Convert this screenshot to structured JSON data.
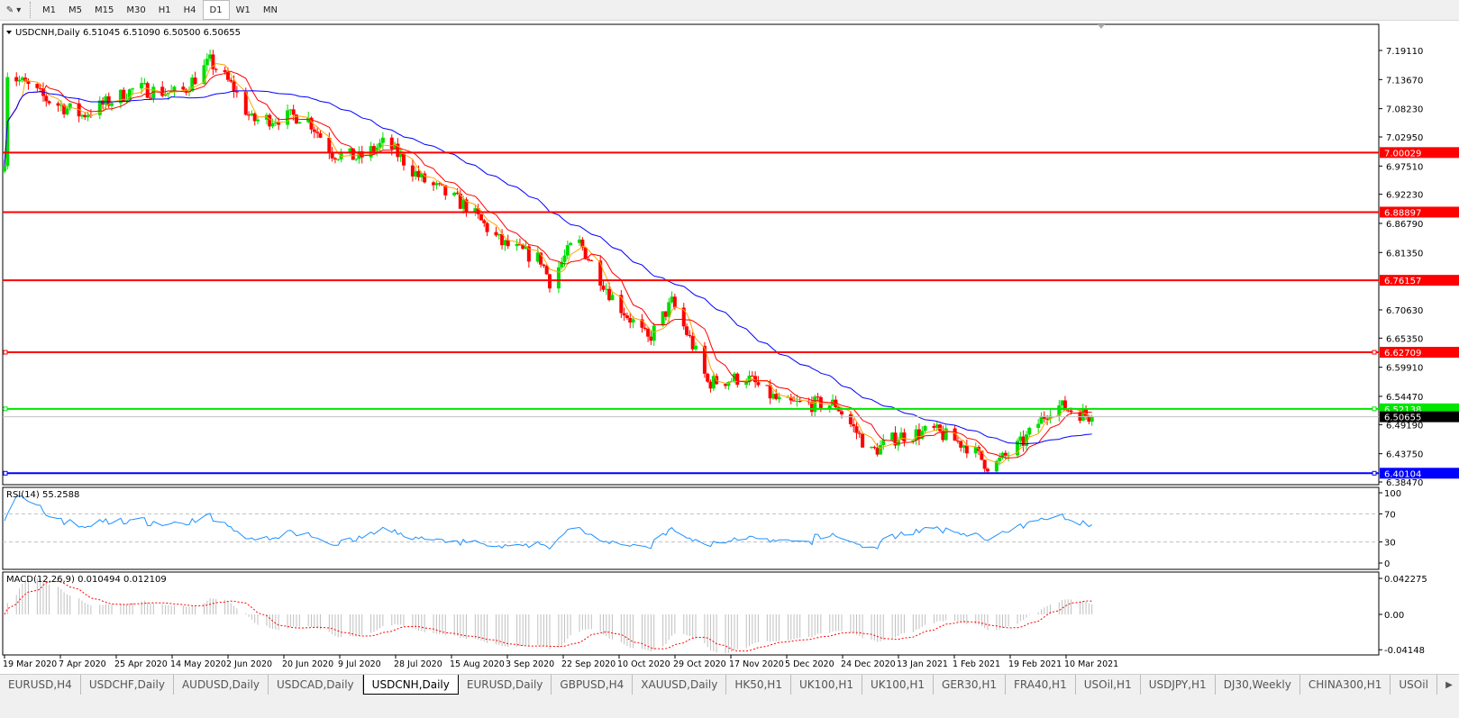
{
  "toolbar": {
    "tool_icon": "crosshair-line-tool-icon",
    "timeframes": [
      "M1",
      "M5",
      "M15",
      "M30",
      "H1",
      "H4",
      "D1",
      "W1",
      "MN"
    ],
    "active": "D1"
  },
  "chart": {
    "header": "USDCNH,Daily  6.51045 6.51090 6.50500 6.50655",
    "symbol": "USDCNH",
    "period": "Daily",
    "open": 6.51045,
    "high": 6.5109,
    "low": 6.505,
    "close": 6.50655,
    "price_ticks": [
      "7.19110",
      "7.13670",
      "7.08230",
      "7.02950",
      "6.97510",
      "6.92230",
      "6.86790",
      "6.81350",
      "6.70630",
      "6.65350",
      "6.59910",
      "6.54470",
      "6.49190",
      "6.43750",
      "6.38470"
    ],
    "levels": [
      {
        "price": "7.00029",
        "color": "#ff0000"
      },
      {
        "price": "6.88897",
        "color": "#ff0000"
      },
      {
        "price": "6.76157",
        "color": "#ff0000"
      },
      {
        "price": "6.62709",
        "color": "#ff0000"
      },
      {
        "price": "6.52138",
        "color": "#00e600"
      },
      {
        "price": "6.40104",
        "color": "#0000ff"
      }
    ],
    "current_price": "6.50655",
    "colors": {
      "bull": "#00dd00",
      "bear": "#ff0000",
      "ma_fast": "#ff0000",
      "ma_short": "#ffa500",
      "ma_slow": "#0000ff"
    },
    "price_path": [
      [
        "2020-03-19",
        6.99
      ],
      [
        "2020-03-20",
        7.15
      ],
      [
        "2020-04-02",
        7.1
      ],
      [
        "2020-04-14",
        7.07
      ],
      [
        "2020-05-02",
        7.12
      ],
      [
        "2020-05-17",
        7.11
      ],
      [
        "2020-05-27",
        7.17
      ],
      [
        "2020-06-04",
        7.12
      ],
      [
        "2020-06-10",
        7.06
      ],
      [
        "2020-06-28",
        7.07
      ],
      [
        "2020-07-07",
        7.0
      ],
      [
        "2020-07-16",
        6.99
      ],
      [
        "2020-07-25",
        7.02
      ],
      [
        "2020-08-06",
        6.95
      ],
      [
        "2020-08-21",
        6.9
      ],
      [
        "2020-09-02",
        6.83
      ],
      [
        "2020-09-15",
        6.8
      ],
      [
        "2020-09-18",
        6.76
      ],
      [
        "2020-09-27",
        6.84
      ],
      [
        "2020-10-09",
        6.73
      ],
      [
        "2020-10-21",
        6.65
      ],
      [
        "2020-10-29",
        6.72
      ],
      [
        "2020-11-05",
        6.64
      ],
      [
        "2020-11-10",
        6.57
      ],
      [
        "2020-11-23",
        6.58
      ],
      [
        "2020-12-05",
        6.53
      ],
      [
        "2020-12-23",
        6.53
      ],
      [
        "2021-01-04",
        6.44
      ],
      [
        "2021-01-13",
        6.47
      ],
      [
        "2021-01-25",
        6.48
      ],
      [
        "2021-02-06",
        6.45
      ],
      [
        "2021-02-13",
        6.41
      ],
      [
        "2021-02-24",
        6.46
      ],
      [
        "2021-03-06",
        6.53
      ],
      [
        "2021-03-19",
        6.50655
      ]
    ]
  },
  "rsi": {
    "label": "RSI(14) 55.2588",
    "ticks": [
      "100",
      "70",
      "30",
      "0"
    ],
    "color": "#1e90ff"
  },
  "macd": {
    "label": "MACD(12,26,9) 0.010494 0.012109",
    "ticks": [
      "0.042275",
      "0.00",
      "-0.04148"
    ],
    "hist_color": "#c0c0c0",
    "signal_color": "#ff0000"
  },
  "date_ticks": [
    "19 Mar 2020",
    "7 Apr 2020",
    "25 Apr 2020",
    "14 May 2020",
    "2 Jun 2020",
    "20 Jun 2020",
    "9 Jul 2020",
    "28 Jul 2020",
    "15 Aug 2020",
    "3 Sep 2020",
    "22 Sep 2020",
    "10 Oct 2020",
    "29 Oct 2020",
    "17 Nov 2020",
    "5 Dec 2020",
    "24 Dec 2020",
    "13 Jan 2021",
    "1 Feb 2021",
    "19 Feb 2021",
    "10 Mar 2021"
  ],
  "tabs": [
    "EURUSD,H4",
    "USDCHF,Daily",
    "AUDUSD,Daily",
    "USDCAD,Daily",
    "USDCNH,Daily",
    "EURUSD,Daily",
    "GBPUSD,H4",
    "XAUUSD,Daily",
    "HK50,H1",
    "UK100,H1",
    "UK100,H1",
    "GER30,H1",
    "FRA40,H1",
    "USOil,H1",
    "USDJPY,H1",
    "DJ30,Weekly",
    "CHINA300,H1",
    "USOil"
  ],
  "active_tab": "USDCNH,Daily"
}
